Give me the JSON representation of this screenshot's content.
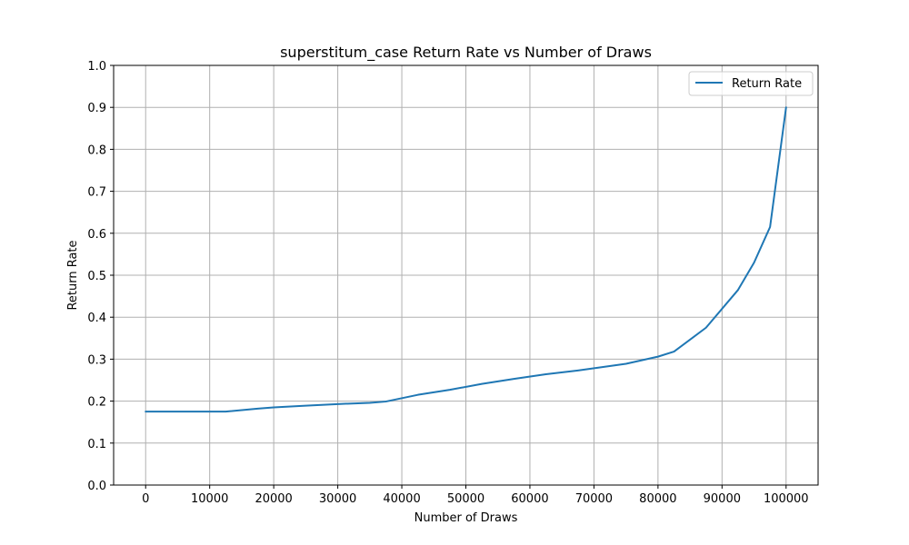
{
  "chart_data": {
    "type": "line",
    "title": "superstitum_case Return Rate vs Number of Draws",
    "xlabel": "Number of Draws",
    "ylabel": "Return Rate",
    "xlim": [
      -5000,
      105000
    ],
    "ylim": [
      0.0,
      1.0
    ],
    "xticks": [
      0,
      10000,
      20000,
      30000,
      40000,
      50000,
      60000,
      70000,
      80000,
      90000,
      100000
    ],
    "xtick_labels": [
      "0",
      "10000",
      "20000",
      "30000",
      "40000",
      "50000",
      "60000",
      "70000",
      "80000",
      "90000",
      "100000"
    ],
    "yticks": [
      0.0,
      0.1,
      0.2,
      0.3,
      0.4,
      0.5,
      0.6,
      0.7,
      0.8,
      0.9,
      1.0
    ],
    "ytick_labels": [
      "0.0",
      "0.1",
      "0.2",
      "0.3",
      "0.4",
      "0.5",
      "0.6",
      "0.7",
      "0.8",
      "0.9",
      "1.0"
    ],
    "grid": true,
    "legend_position": "top-right",
    "series": [
      {
        "name": "Return Rate",
        "color": "#1f77b4",
        "x": [
          0,
          12500,
          17500,
          20000,
          25000,
          30000,
          35000,
          37500,
          42500,
          47500,
          52500,
          57500,
          62500,
          67500,
          75000,
          80000,
          82500,
          87500,
          92500,
          95000,
          97500,
          100000
        ],
        "y": [
          0.175,
          0.175,
          0.182,
          0.185,
          0.189,
          0.193,
          0.196,
          0.199,
          0.215,
          0.227,
          0.241,
          0.253,
          0.264,
          0.273,
          0.289,
          0.306,
          0.318,
          0.375,
          0.465,
          0.53,
          0.615,
          0.9
        ]
      }
    ]
  }
}
